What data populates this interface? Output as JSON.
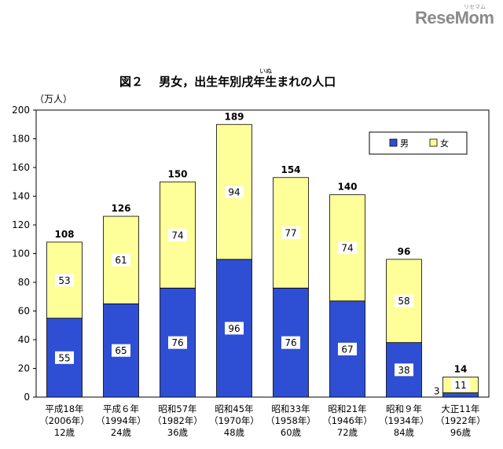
{
  "logo": {
    "text": "ReseMom",
    "subtext": "リセマム"
  },
  "chart_data": {
    "type": "bar",
    "stacked": true,
    "title_parts": {
      "pre": "図２　 男女，出生年別",
      "ruby_base": "戌",
      "ruby": "いぬ",
      "post": "年生まれの人口"
    },
    "unit_label": "（万人）",
    "ylim": [
      0,
      200
    ],
    "yticks": [
      0,
      20,
      40,
      60,
      80,
      100,
      120,
      140,
      160,
      180,
      200
    ],
    "grid": false,
    "legend_position": "top-right",
    "categories": [
      [
        "平成18年",
        "（2006年）",
        "12歳"
      ],
      [
        "平成６年",
        "（1994年）",
        "24歳"
      ],
      [
        "昭和57年",
        "（1982年）",
        "36歳"
      ],
      [
        "昭和45年",
        "（1970年）",
        "48歳"
      ],
      [
        "昭和33年",
        "（1958年）",
        "60歳"
      ],
      [
        "昭和21年",
        "（1946年）",
        "72歳"
      ],
      [
        "昭和９年",
        "（1934年）",
        "84歳"
      ],
      [
        "大正11年",
        "（1922年）",
        "96歳"
      ]
    ],
    "series": [
      {
        "name": "男",
        "values": [
          55,
          65,
          76,
          96,
          76,
          67,
          38,
          3
        ],
        "color": "#2e4fd3"
      },
      {
        "name": "女",
        "values": [
          53,
          61,
          74,
          94,
          77,
          74,
          58,
          11
        ],
        "color": "#ffff99"
      }
    ],
    "totals": [
      108,
      126,
      150,
      189,
      154,
      140,
      96,
      14
    ]
  }
}
